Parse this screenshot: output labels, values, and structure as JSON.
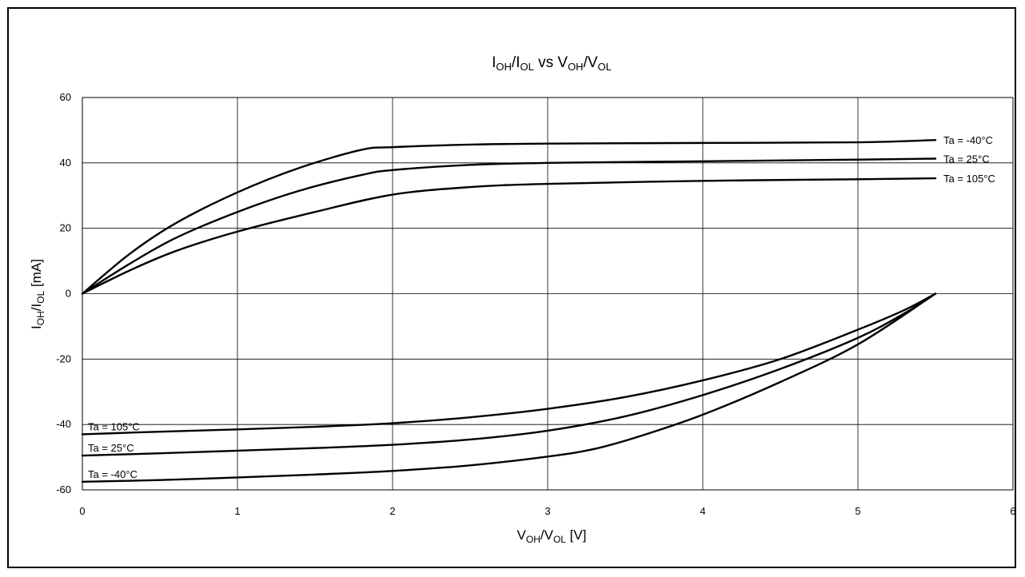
{
  "chart_data": {
    "type": "line",
    "title": {
      "main": "I",
      "sub1": "OH",
      "sep1": "/I",
      "sub2": "OL",
      "mid": " vs V",
      "sub3": "OH",
      "sep2": "/V",
      "sub4": "OL"
    },
    "xlabel": {
      "pre": "V",
      "sub1": "OH",
      "sep": "/V",
      "sub2": "OL",
      "post": " [V]"
    },
    "ylabel": {
      "pre": "I",
      "sub1": "OH",
      "sep": "/I",
      "sub2": "OL",
      "post": " [mA]"
    },
    "xlim": [
      0,
      6
    ],
    "ylim": [
      -60,
      60
    ],
    "grid": true,
    "xticks": [
      0,
      1,
      2,
      3,
      4,
      5,
      6
    ],
    "yticks": [
      -60,
      -40,
      -20,
      0,
      20,
      40,
      60
    ],
    "series": [
      {
        "name": "Ta = -40°C",
        "group": "IOH",
        "points": [
          [
            0,
            0
          ],
          [
            0.3,
            12
          ],
          [
            0.6,
            21.5
          ],
          [
            1.0,
            31
          ],
          [
            1.4,
            38.5
          ],
          [
            1.8,
            44
          ],
          [
            2.0,
            44.8
          ],
          [
            2.5,
            45.6
          ],
          [
            3.0,
            45.9
          ],
          [
            4.0,
            46.1
          ],
          [
            5.0,
            46.3
          ],
          [
            5.5,
            47
          ]
        ]
      },
      {
        "name": "Ta = 25°C",
        "group": "IOH",
        "points": [
          [
            0,
            0
          ],
          [
            0.3,
            9
          ],
          [
            0.6,
            17
          ],
          [
            1.0,
            25
          ],
          [
            1.4,
            31.5
          ],
          [
            1.8,
            36.3
          ],
          [
            2.0,
            37.8
          ],
          [
            2.5,
            39.4
          ],
          [
            3.0,
            40
          ],
          [
            4.0,
            40.5
          ],
          [
            5.0,
            41
          ],
          [
            5.5,
            41.3
          ]
        ]
      },
      {
        "name": "Ta = 105°C",
        "group": "IOH",
        "points": [
          [
            0,
            0
          ],
          [
            0.3,
            7
          ],
          [
            0.6,
            13
          ],
          [
            1.0,
            19
          ],
          [
            1.5,
            25
          ],
          [
            2.0,
            30.3
          ],
          [
            2.5,
            32.6
          ],
          [
            3.0,
            33.6
          ],
          [
            4.0,
            34.5
          ],
          [
            5.0,
            35
          ],
          [
            5.5,
            35.3
          ]
        ]
      },
      {
        "name": "Ta = 105°C",
        "group": "IOL",
        "points": [
          [
            0,
            -43
          ],
          [
            0.5,
            -42.2
          ],
          [
            1.0,
            -41.5
          ],
          [
            1.5,
            -40.7
          ],
          [
            2.0,
            -39.6
          ],
          [
            2.5,
            -37.8
          ],
          [
            3.0,
            -35.2
          ],
          [
            3.5,
            -31.6
          ],
          [
            4.0,
            -26.5
          ],
          [
            4.5,
            -20
          ],
          [
            5.0,
            -11
          ],
          [
            5.3,
            -5
          ],
          [
            5.5,
            0
          ]
        ]
      },
      {
        "name": "Ta = 25°C",
        "group": "IOL",
        "points": [
          [
            0,
            -49.5
          ],
          [
            0.5,
            -48.8
          ],
          [
            1.0,
            -48
          ],
          [
            1.5,
            -47.2
          ],
          [
            2.0,
            -46.2
          ],
          [
            2.5,
            -44.6
          ],
          [
            3.0,
            -41.9
          ],
          [
            3.5,
            -37.5
          ],
          [
            4.0,
            -31
          ],
          [
            4.5,
            -23
          ],
          [
            5.0,
            -13.5
          ],
          [
            5.3,
            -6
          ],
          [
            5.5,
            0
          ]
        ]
      },
      {
        "name": "Ta = -40°C",
        "group": "IOL",
        "points": [
          [
            0,
            -57.5
          ],
          [
            0.5,
            -57
          ],
          [
            1.0,
            -56.2
          ],
          [
            1.5,
            -55.3
          ],
          [
            2.0,
            -54.2
          ],
          [
            2.5,
            -52.5
          ],
          [
            3.0,
            -49.8
          ],
          [
            3.3,
            -47.5
          ],
          [
            3.6,
            -43.5
          ],
          [
            4.0,
            -37
          ],
          [
            4.5,
            -27
          ],
          [
            5.0,
            -15.5
          ],
          [
            5.5,
            0
          ]
        ]
      }
    ]
  }
}
